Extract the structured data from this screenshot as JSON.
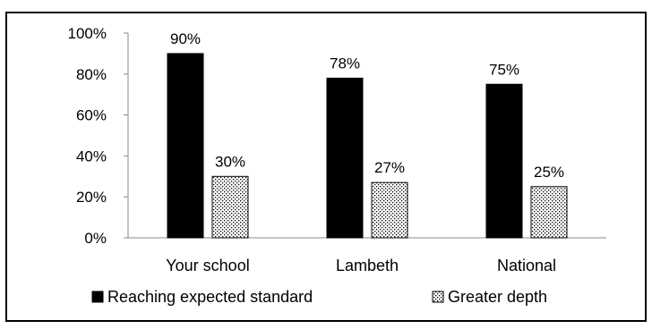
{
  "chart_data": {
    "type": "bar",
    "categories": [
      "Your school",
      "Lambeth",
      "National"
    ],
    "series": [
      {
        "name": "Reaching expected standard",
        "values": [
          90,
          78,
          75
        ],
        "data_labels": [
          "90%",
          "78%",
          "75%"
        ],
        "color": "#000000",
        "pattern": "solid"
      },
      {
        "name": "Greater depth",
        "values": [
          30,
          27,
          25
        ],
        "data_labels": [
          "30%",
          "27%",
          "25%"
        ],
        "color": "#000000",
        "pattern": "dotted"
      }
    ],
    "ylim": [
      0,
      100
    ],
    "y_ticks": [
      0,
      20,
      40,
      60,
      80,
      100
    ],
    "y_tick_labels": [
      "0%",
      "20%",
      "40%",
      "60%",
      "80%",
      "100%"
    ],
    "grid": false,
    "legend_position": "bottom"
  }
}
